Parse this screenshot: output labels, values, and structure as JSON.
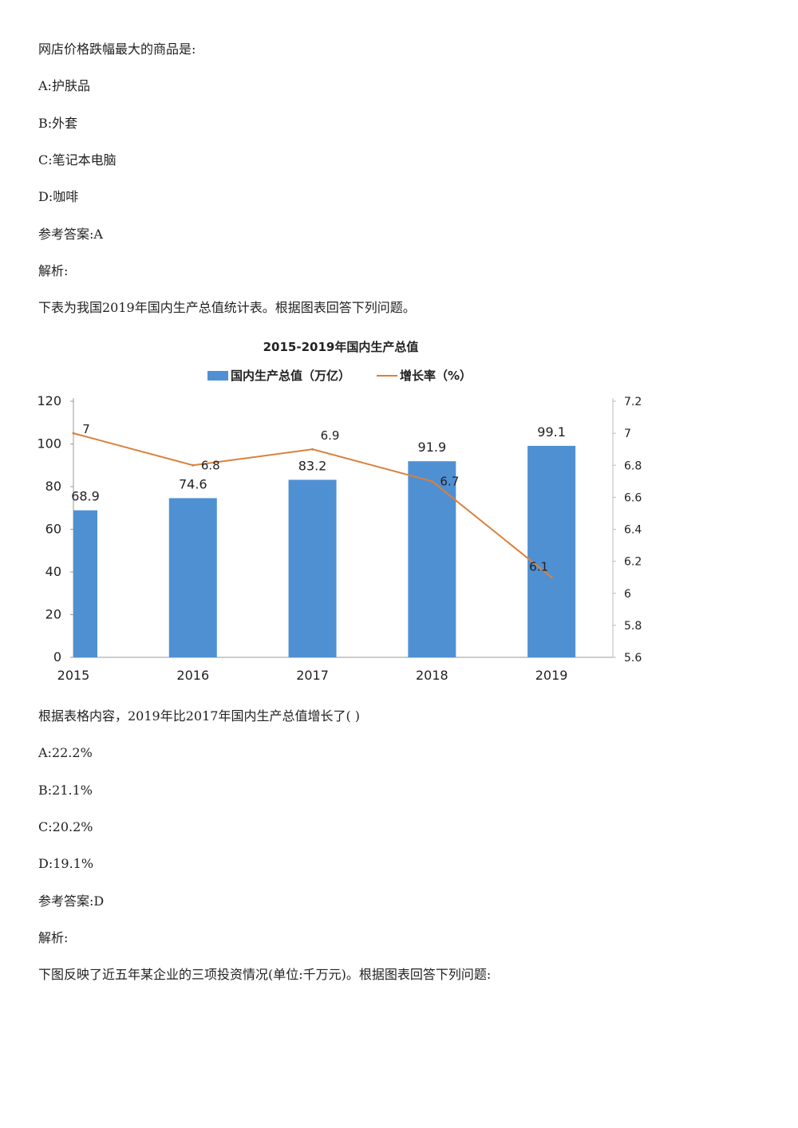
{
  "lines": [
    "网店价格跌幅最大的商品是:",
    "A:护肤品",
    "B:外套",
    "C:笔记本电脑",
    "D:咖啡",
    "参考答案:A",
    "解析:",
    "下表为我国2019年国内生产总值统计表。根据图表回答下列问题。"
  ],
  "lines_after": [
    "根据表格内容，2019年比2017年国内生产总值增长了( )",
    "A:22.2%",
    "B:21.1%",
    "C:20.2%",
    "D:19.1%",
    "参考答案:D",
    "解析:",
    "下图反映了近五年某企业的三项投资情况(单位:千万元)。根据图表回答下列问题:"
  ],
  "chart_data": {
    "type": "bar",
    "title": "2015-2019年国内生产总值",
    "categories": [
      "2015",
      "2016",
      "2017",
      "2018",
      "2019"
    ],
    "series": [
      {
        "name": "国内生产总值（万亿）",
        "type": "bar",
        "axis": "left",
        "values": [
          68.9,
          74.6,
          83.2,
          91.9,
          99.1
        ],
        "color": "#4f90d3"
      },
      {
        "name": "增长率（%）",
        "type": "line",
        "axis": "right",
        "values": [
          7,
          6.8,
          6.9,
          6.7,
          6.1
        ],
        "color": "#d9813a"
      }
    ],
    "ylim_left": [
      0,
      120
    ],
    "yticks_left": [
      "0",
      "20",
      "40",
      "60",
      "80",
      "100",
      "120"
    ],
    "ylim_right": [
      5.6,
      7.2
    ],
    "yticks_right": [
      "5.6",
      "5.8",
      "6",
      "6.2",
      "6.4",
      "6.6",
      "6.8",
      "7",
      "7.2"
    ],
    "bar_labels": [
      "68.9",
      "74.6",
      "83.2",
      "91.9",
      "99.1"
    ],
    "line_labels": [
      "7",
      "6.8",
      "6.9",
      "6.7",
      "6.1"
    ],
    "legend": "top-center",
    "grid": false
  }
}
